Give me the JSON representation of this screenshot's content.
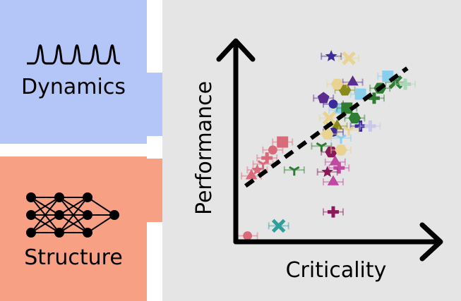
{
  "panels": {
    "dynamics": {
      "label": "Dynamics",
      "color": "#b4c6f7",
      "icon": "spike-train-icon"
    },
    "structure": {
      "label": "Structure",
      "color": "#f7a084",
      "icon": "neural-network-icon"
    },
    "plot": {
      "background": "#e5e5e5"
    }
  },
  "chart_data": {
    "type": "scatter",
    "xlabel": "Criticality",
    "ylabel": "Performance",
    "axis_ticks": "none",
    "trend": {
      "style": "dashed",
      "color": "#000000",
      "from": [
        0.05,
        0.28
      ],
      "to": [
        0.88,
        0.87
      ]
    },
    "points": [
      {
        "x": 0.49,
        "y": 0.93,
        "marker": "star",
        "color": "#3b2a9a"
      },
      {
        "x": 0.58,
        "y": 0.92,
        "marker": "x",
        "color": "#e8d490"
      },
      {
        "x": 0.82,
        "y": 0.8,
        "marker": "x",
        "color": "#2e7d32"
      },
      {
        "x": 0.87,
        "y": 0.79,
        "marker": "plus",
        "color": "#a8d8b8"
      },
      {
        "x": 0.78,
        "y": 0.83,
        "marker": "square",
        "color": "#88cfee"
      },
      {
        "x": 0.74,
        "y": 0.77,
        "marker": "hexagon",
        "color": "#2e7d32"
      },
      {
        "x": 0.71,
        "y": 0.72,
        "marker": "plus",
        "color": "#2e7d32"
      },
      {
        "x": 0.56,
        "y": 0.76,
        "marker": "hexagon",
        "color": "#8a8a1a"
      },
      {
        "x": 0.6,
        "y": 0.8,
        "marker": "triangle",
        "color": "#5b2d8e"
      },
      {
        "x": 0.64,
        "y": 0.74,
        "marker": "square",
        "color": "#88cfee"
      },
      {
        "x": 0.52,
        "y": 0.79,
        "marker": "hexagon",
        "color": "#e8d490"
      },
      {
        "x": 0.45,
        "y": 0.72,
        "marker": "pentagon",
        "color": "#5b2d8e"
      },
      {
        "x": 0.5,
        "y": 0.69,
        "marker": "circle",
        "color": "#3b2a9a"
      },
      {
        "x": 0.53,
        "y": 0.66,
        "marker": "triangle",
        "color": "#88cfee"
      },
      {
        "x": 0.57,
        "y": 0.67,
        "marker": "square",
        "color": "#2e7d32"
      },
      {
        "x": 0.61,
        "y": 0.62,
        "marker": "hexagon",
        "color": "#2e7d32"
      },
      {
        "x": 0.64,
        "y": 0.58,
        "marker": "plus",
        "color": "#3b2a9a"
      },
      {
        "x": 0.69,
        "y": 0.58,
        "marker": "plus",
        "color": "#c8c8e8"
      },
      {
        "x": 0.48,
        "y": 0.62,
        "marker": "x",
        "color": "#e8d490"
      },
      {
        "x": 0.52,
        "y": 0.58,
        "marker": "triangle",
        "color": "#8a8a1a"
      },
      {
        "x": 0.58,
        "y": 0.56,
        "marker": "tri",
        "color": "#e8d490"
      },
      {
        "x": 0.54,
        "y": 0.52,
        "marker": "tri",
        "color": "#88cfee"
      },
      {
        "x": 0.5,
        "y": 0.55,
        "marker": "circle",
        "color": "#3b2a9a"
      },
      {
        "x": 0.47,
        "y": 0.54,
        "marker": "hexagon",
        "color": "#e8d490"
      },
      {
        "x": 0.44,
        "y": 0.48,
        "marker": "tri",
        "color": "#2e7d32"
      },
      {
        "x": 0.49,
        "y": 0.45,
        "marker": "hexagon",
        "color": "#8a1a5a"
      },
      {
        "x": 0.54,
        "y": 0.46,
        "marker": "hexagon",
        "color": "#e8d490"
      },
      {
        "x": 0.51,
        "y": 0.4,
        "marker": "triangle",
        "color": "#c04aa0"
      },
      {
        "x": 0.53,
        "y": 0.37,
        "marker": "plus",
        "color": "#c04aa0"
      },
      {
        "x": 0.47,
        "y": 0.35,
        "marker": "star",
        "color": "#8a1a5a"
      },
      {
        "x": 0.5,
        "y": 0.3,
        "marker": "triangle",
        "color": "#c04aa0"
      },
      {
        "x": 0.24,
        "y": 0.5,
        "marker": "square",
        "color": "#d86a7a"
      },
      {
        "x": 0.19,
        "y": 0.46,
        "marker": "circle",
        "color": "#d86a7a"
      },
      {
        "x": 0.16,
        "y": 0.42,
        "marker": "plus",
        "color": "#d86a7a"
      },
      {
        "x": 0.14,
        "y": 0.39,
        "marker": "tri",
        "color": "#d86a7a"
      },
      {
        "x": 0.11,
        "y": 0.36,
        "marker": "star",
        "color": "#d86a7a"
      },
      {
        "x": 0.08,
        "y": 0.33,
        "marker": "triangle",
        "color": "#d86a7a"
      },
      {
        "x": 0.3,
        "y": 0.36,
        "marker": "tri",
        "color": "#2e7d32"
      },
      {
        "x": 0.5,
        "y": 0.15,
        "marker": "plus",
        "color": "#8a1a5a"
      },
      {
        "x": 0.22,
        "y": 0.08,
        "marker": "x",
        "color": "#2aa19a"
      },
      {
        "x": 0.06,
        "y": 0.03,
        "marker": "circle",
        "color": "#d86a7a"
      }
    ]
  }
}
